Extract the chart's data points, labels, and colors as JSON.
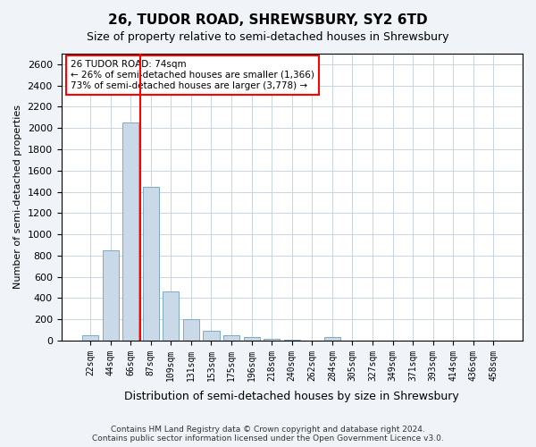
{
  "title1": "26, TUDOR ROAD, SHREWSBURY, SY2 6TD",
  "title2": "Size of property relative to semi-detached houses in Shrewsbury",
  "xlabel": "Distribution of semi-detached houses by size in Shrewsbury",
  "ylabel": "Number of semi-detached properties",
  "categories": [
    "22sqm",
    "44sqm",
    "66sqm",
    "87sqm",
    "109sqm",
    "131sqm",
    "153sqm",
    "175sqm",
    "196sqm",
    "218sqm",
    "240sqm",
    "262sqm",
    "284sqm",
    "305sqm",
    "327sqm",
    "349sqm",
    "371sqm",
    "393sqm",
    "414sqm",
    "436sqm",
    "458sqm"
  ],
  "values": [
    50,
    850,
    2050,
    1450,
    460,
    200,
    90,
    50,
    30,
    15,
    5,
    0,
    30,
    0,
    0,
    0,
    0,
    0,
    0,
    0,
    0
  ],
  "bar_color": "#c9d9e8",
  "bar_edge_color": "#7aaac8",
  "vline_x": 2,
  "vline_color": "red",
  "annotation_title": "26 TUDOR ROAD: 74sqm",
  "annotation_line1": "← 26% of semi-detached houses are smaller (1,366)",
  "annotation_line2": "73% of semi-detached houses are larger (3,778) →",
  "annotation_box_color": "white",
  "annotation_box_edge_color": "red",
  "ylim": [
    0,
    2700
  ],
  "yticks": [
    0,
    200,
    400,
    600,
    800,
    1000,
    1200,
    1400,
    1600,
    1800,
    2000,
    2200,
    2400,
    2600
  ],
  "footer1": "Contains HM Land Registry data © Crown copyright and database right 2024.",
  "footer2": "Contains public sector information licensed under the Open Government Licence v3.0.",
  "bg_color": "#f0f4f8",
  "plot_bg_color": "#ffffff"
}
